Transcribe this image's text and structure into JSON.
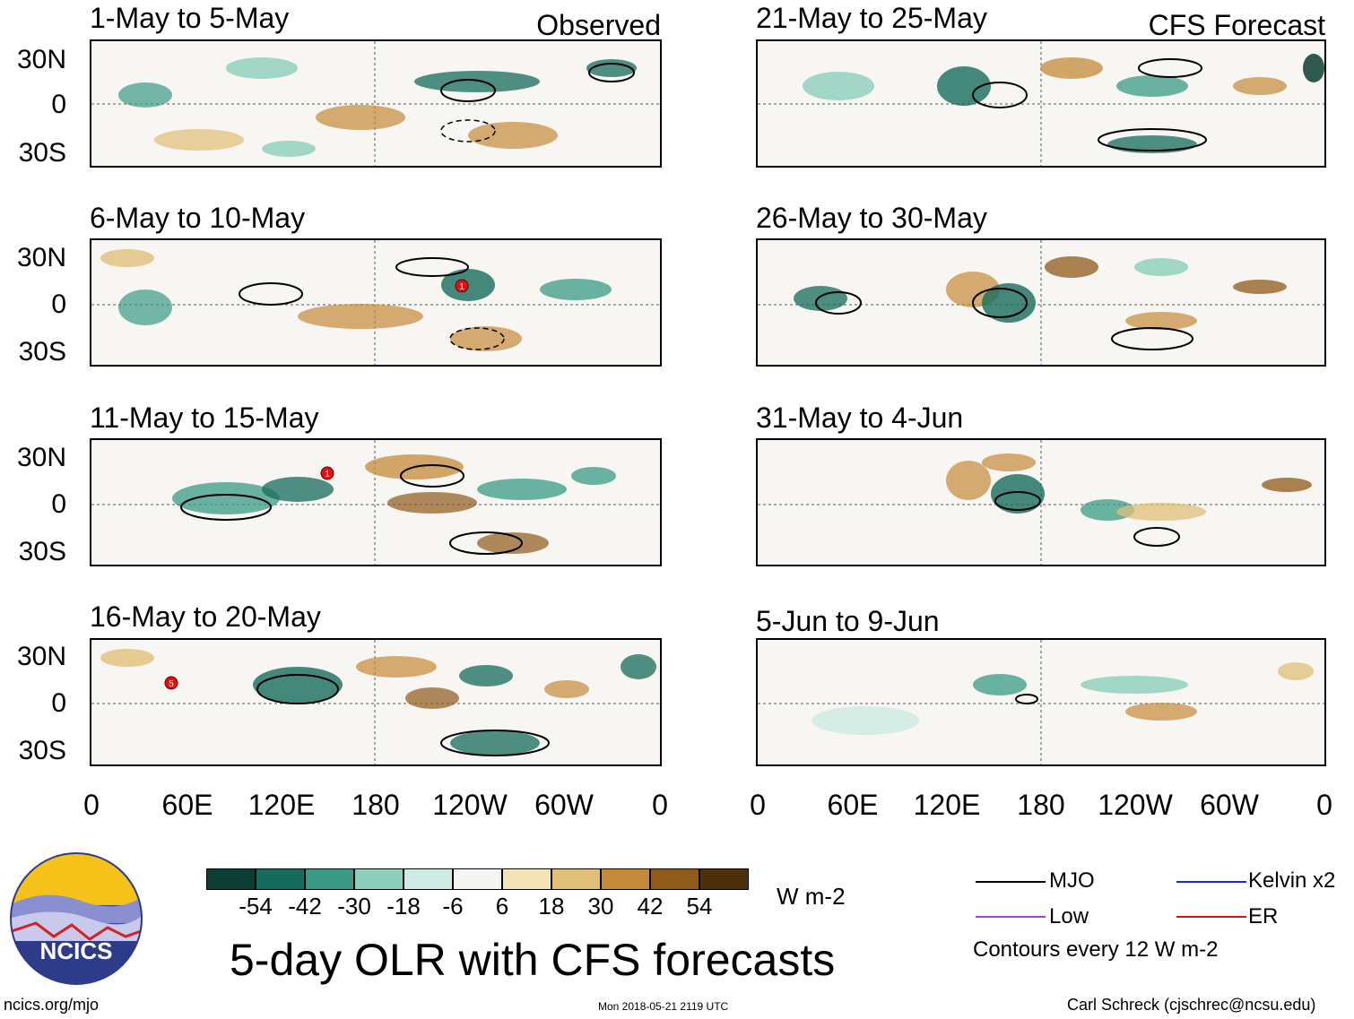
{
  "headers": {
    "observed": "Observed",
    "forecast": "CFS Forecast"
  },
  "observed_panels": [
    {
      "title": "1-May to 5-May"
    },
    {
      "title": "6-May to 10-May",
      "markers": [
        "1"
      ]
    },
    {
      "title": "11-May to 15-May",
      "markers": [
        "1"
      ]
    },
    {
      "title": "16-May to 20-May",
      "markers": [
        "5"
      ]
    }
  ],
  "forecast_panels": [
    {
      "title": "21-May to 25-May"
    },
    {
      "title": "26-May to 30-May"
    },
    {
      "title": "31-May to 4-Jun"
    },
    {
      "title": "5-Jun to 9-Jun"
    }
  ],
  "lat_labels": [
    "30N",
    "0",
    "30S"
  ],
  "lon_labels": [
    "0",
    "60E",
    "120E",
    "180",
    "120W",
    "60W",
    "0"
  ],
  "colorbar": {
    "colors": [
      "#0b3d33",
      "#166b5c",
      "#3a9a86",
      "#8ccfbd",
      "#cdebe2",
      "#f5f5f3",
      "#f3e4b6",
      "#e0bf78",
      "#c48a3a",
      "#8f5a1a",
      "#4d2f0c"
    ],
    "labels": [
      "-54",
      "-42",
      "-30",
      "-18",
      "-6",
      "6",
      "18",
      "30",
      "42",
      "54"
    ],
    "units": "W m-2"
  },
  "legend": {
    "items": [
      {
        "label": "MJO",
        "color": "#000000"
      },
      {
        "label": "Kelvin x2",
        "color": "#1a2fd0"
      },
      {
        "label": "Low",
        "color": "#a040e0"
      },
      {
        "label": "ER",
        "color": "#dd1111"
      }
    ],
    "note": "Contours every 12 W m-2"
  },
  "logo_text": "NCICS",
  "main_title": "5-day OLR with CFS forecasts",
  "footer": {
    "url": "ncics.org/mjo",
    "timestamp": "Mon 2018-05-21 2119 UTC",
    "credit": "Carl Schreck (cjschrec@ncsu.edu)"
  }
}
